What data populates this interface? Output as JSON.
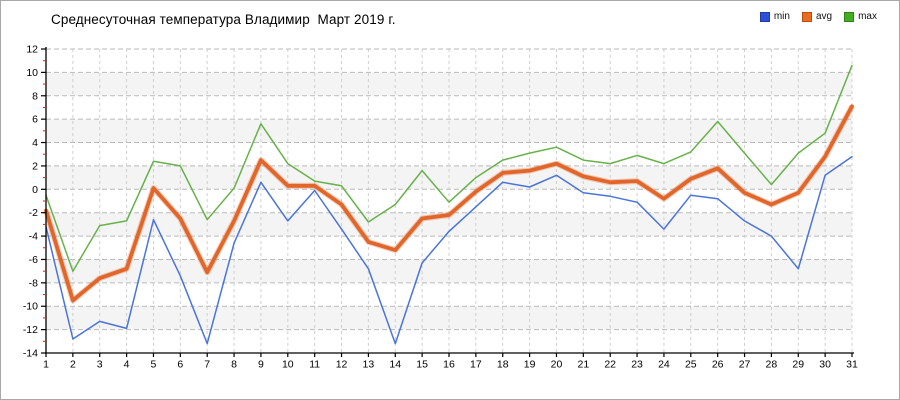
{
  "chart": {
    "title": "Среднесуточная температура Владимир  Март 2019 г."
  },
  "chart_data": {
    "type": "line",
    "title": "Среднесуточная температура Владимир  Март 2019 г.",
    "xlabel": "",
    "ylabel": "",
    "x": [
      1,
      2,
      3,
      4,
      5,
      6,
      7,
      8,
      9,
      10,
      11,
      12,
      13,
      14,
      15,
      16,
      17,
      18,
      19,
      20,
      21,
      22,
      23,
      24,
      25,
      26,
      27,
      28,
      29,
      30,
      31
    ],
    "series": [
      {
        "name": "min",
        "color": "#4a74da",
        "swatch": "#2b50d8",
        "width": 1.5,
        "values": [
          -3.2,
          -12.8,
          -11.3,
          -11.9,
          -2.6,
          -7.4,
          -13.2,
          -4.6,
          0.6,
          -2.7,
          -0.1,
          -3.4,
          -6.8,
          -13.2,
          -6.3,
          -3.6,
          -1.5,
          0.6,
          0.2,
          1.2,
          -0.3,
          -0.6,
          -1.1,
          -3.4,
          -0.5,
          -0.8,
          -2.7,
          -4.0,
          -6.8,
          1.2,
          2.8
        ]
      },
      {
        "name": "avg",
        "color": "#e2662a",
        "swatch": "#ec6b1f",
        "width": 3.8,
        "values": [
          -1.8,
          -9.5,
          -7.6,
          -6.8,
          0.1,
          -2.5,
          -7.1,
          -2.7,
          2.5,
          0.3,
          0.3,
          -1.3,
          -4.5,
          -5.2,
          -2.5,
          -2.2,
          -0.2,
          1.4,
          1.6,
          2.2,
          1.1,
          0.6,
          0.7,
          -0.8,
          0.9,
          1.8,
          -0.3,
          -1.3,
          -0.3,
          2.8,
          7.1
        ]
      },
      {
        "name": "max",
        "color": "#67b14a",
        "swatch": "#3fae1f",
        "width": 1.5,
        "values": [
          -0.5,
          -7.0,
          -3.1,
          -2.7,
          2.4,
          2.0,
          -2.6,
          0.1,
          5.6,
          2.2,
          0.7,
          0.3,
          -2.8,
          -1.3,
          1.6,
          -1.1,
          1.0,
          2.5,
          3.1,
          3.6,
          2.5,
          2.2,
          2.9,
          2.2,
          3.2,
          5.8,
          3.1,
          0.4,
          3.1,
          4.8,
          10.6
        ]
      }
    ],
    "ylim": [
      -14,
      12
    ],
    "y_ticks": [
      12,
      10,
      8,
      6,
      4,
      2,
      0,
      -2,
      -4,
      -6,
      -8,
      -10,
      -12,
      -14
    ],
    "grid": true,
    "legend_position": "top-right",
    "band_colors": [
      "#ffffff",
      "#f4f4f4"
    ],
    "axis_color": "#000000",
    "minor_tick_color": "#dd2200",
    "grid_color": "#bababa",
    "vgrid_color": "#cfcfcf"
  }
}
